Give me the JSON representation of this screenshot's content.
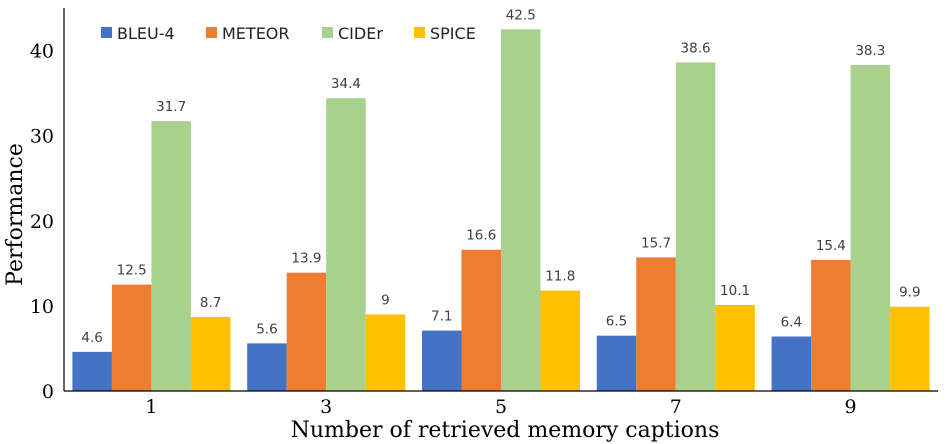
{
  "chart_data": {
    "type": "bar",
    "xlabel": "Number of retrieved memory captions",
    "ylabel": "Performance",
    "categories": [
      "1",
      "3",
      "5",
      "7",
      "9"
    ],
    "ylim": [
      0,
      45
    ],
    "yticks": [
      "0",
      "10",
      "20",
      "30",
      "40"
    ],
    "grid": false,
    "legend_position": "top-left",
    "series": [
      {
        "name": "BLEU-4",
        "color": "#4472C4",
        "values": [
          4.6,
          5.6,
          7.1,
          6.5,
          6.4
        ],
        "labels": [
          "4.6",
          "5.6",
          "7.1",
          "6.5",
          "6.4"
        ]
      },
      {
        "name": "METEOR",
        "color": "#ED7D31",
        "values": [
          12.5,
          13.9,
          16.6,
          15.7,
          15.4
        ],
        "labels": [
          "12.5",
          "13.9",
          "16.6",
          "15.7",
          "15.4"
        ]
      },
      {
        "name": "CIDEr",
        "color": "#A9D18E",
        "values": [
          31.7,
          34.4,
          42.5,
          38.6,
          38.3
        ],
        "labels": [
          "31.7",
          "34.4",
          "42.5",
          "38.6",
          "38.3"
        ]
      },
      {
        "name": "SPICE",
        "color": "#FFC000",
        "values": [
          8.7,
          9,
          11.8,
          10.1,
          9.9
        ],
        "labels": [
          "8.7",
          "9",
          "11.8",
          "10.1",
          "9.9"
        ]
      }
    ]
  }
}
